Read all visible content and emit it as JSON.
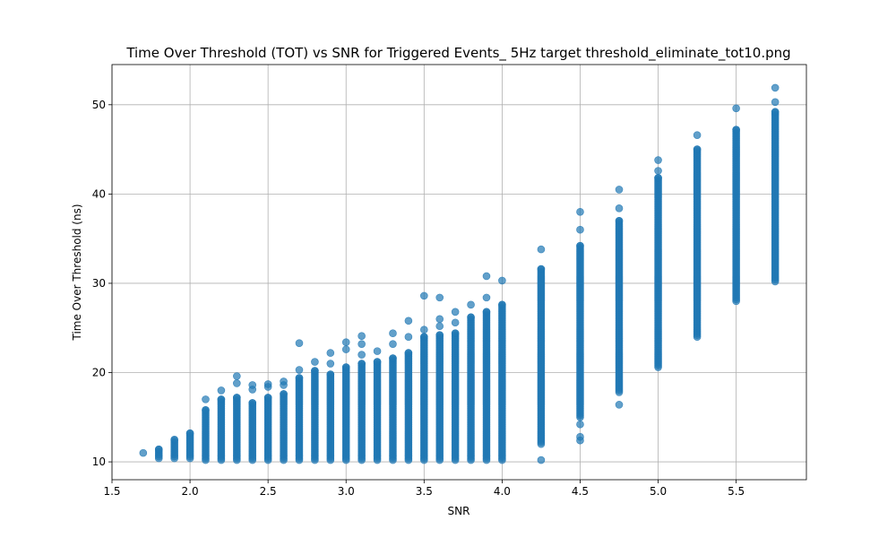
{
  "chart_data": {
    "type": "scatter",
    "title": "Time Over Threshold (TOT) vs SNR for Triggered Events_ 5Hz target threshold_eliminate_tot10.png",
    "xlabel": "SNR",
    "ylabel": "Time Over Threshold (ns)",
    "xlim": [
      1.5,
      5.95
    ],
    "ylim": [
      8,
      54.5
    ],
    "xticks": [
      1.5,
      2.0,
      2.5,
      3.0,
      3.5,
      4.0,
      4.5,
      5.0,
      5.5
    ],
    "xtick_labels": [
      "1.5",
      "2.0",
      "2.5",
      "3.0",
      "3.5",
      "4.0",
      "4.5",
      "5.0",
      "5.5"
    ],
    "yticks": [
      10,
      20,
      30,
      40,
      50
    ],
    "ytick_labels": [
      "10",
      "20",
      "30",
      "40",
      "50"
    ],
    "grid": true,
    "color": "#1f77b4",
    "series_columns": [
      {
        "x": 1.7,
        "ymin": 11.0,
        "ymax": 11.0,
        "extra": []
      },
      {
        "x": 1.8,
        "ymin": 10.4,
        "ymax": 11.4,
        "extra": []
      },
      {
        "x": 1.9,
        "ymin": 10.4,
        "ymax": 12.5,
        "extra": []
      },
      {
        "x": 2.0,
        "ymin": 10.4,
        "ymax": 13.2,
        "extra": []
      },
      {
        "x": 2.1,
        "ymin": 10.2,
        "ymax": 15.8,
        "extra": [
          17.0
        ]
      },
      {
        "x": 2.2,
        "ymin": 10.2,
        "ymax": 17.0,
        "extra": [
          18.0
        ]
      },
      {
        "x": 2.3,
        "ymin": 10.2,
        "ymax": 17.2,
        "extra": [
          18.8,
          19.6
        ]
      },
      {
        "x": 2.4,
        "ymin": 10.2,
        "ymax": 16.6,
        "extra": [
          18.1,
          18.6
        ]
      },
      {
        "x": 2.5,
        "ymin": 10.2,
        "ymax": 17.2,
        "extra": [
          18.4,
          18.7
        ]
      },
      {
        "x": 2.6,
        "ymin": 10.2,
        "ymax": 17.6,
        "extra": [
          18.6,
          19.0
        ]
      },
      {
        "x": 2.7,
        "ymin": 10.2,
        "ymax": 19.4,
        "extra": [
          20.3,
          23.3
        ]
      },
      {
        "x": 2.8,
        "ymin": 10.2,
        "ymax": 20.2,
        "extra": [
          21.2
        ]
      },
      {
        "x": 2.9,
        "ymin": 10.2,
        "ymax": 19.8,
        "extra": [
          21.0,
          22.2
        ]
      },
      {
        "x": 3.0,
        "ymin": 10.2,
        "ymax": 20.6,
        "extra": [
          22.6,
          23.4
        ]
      },
      {
        "x": 3.1,
        "ymin": 10.2,
        "ymax": 21.0,
        "extra": [
          22.0,
          23.2,
          24.1
        ]
      },
      {
        "x": 3.2,
        "ymin": 10.2,
        "ymax": 21.2,
        "extra": [
          22.4
        ]
      },
      {
        "x": 3.3,
        "ymin": 10.2,
        "ymax": 21.6,
        "extra": [
          23.2,
          24.4
        ]
      },
      {
        "x": 3.4,
        "ymin": 10.2,
        "ymax": 22.2,
        "extra": [
          24.0,
          25.8
        ]
      },
      {
        "x": 3.5,
        "ymin": 10.2,
        "ymax": 24.0,
        "extra": [
          24.8,
          28.6
        ]
      },
      {
        "x": 3.6,
        "ymin": 10.2,
        "ymax": 24.2,
        "extra": [
          25.2,
          26.0,
          28.4
        ]
      },
      {
        "x": 3.7,
        "ymin": 10.2,
        "ymax": 24.4,
        "extra": [
          25.6,
          26.8
        ]
      },
      {
        "x": 3.8,
        "ymin": 10.2,
        "ymax": 26.2,
        "extra": [
          27.6
        ]
      },
      {
        "x": 3.9,
        "ymin": 10.2,
        "ymax": 26.8,
        "extra": [
          28.4,
          30.8
        ]
      },
      {
        "x": 4.0,
        "ymin": 10.2,
        "ymax": 27.6,
        "extra": [
          30.3
        ]
      },
      {
        "x": 4.25,
        "ymin": 12.0,
        "ymax": 31.6,
        "extra": [
          10.2,
          33.8
        ]
      },
      {
        "x": 4.5,
        "ymin": 15.0,
        "ymax": 34.2,
        "extra": [
          12.4,
          12.8,
          14.2,
          36.0,
          38.0
        ]
      },
      {
        "x": 4.75,
        "ymin": 17.8,
        "ymax": 37.0,
        "extra": [
          16.4,
          38.4,
          40.5
        ]
      },
      {
        "x": 5.0,
        "ymin": 20.6,
        "ymax": 41.8,
        "extra": [
          42.6,
          43.8
        ]
      },
      {
        "x": 5.25,
        "ymin": 24.0,
        "ymax": 45.0,
        "extra": [
          46.6
        ]
      },
      {
        "x": 5.5,
        "ymin": 28.0,
        "ymax": 47.2,
        "extra": [
          49.6
        ]
      },
      {
        "x": 5.75,
        "ymin": 30.2,
        "ymax": 49.2,
        "extra": [
          50.3,
          51.9
        ]
      }
    ]
  }
}
